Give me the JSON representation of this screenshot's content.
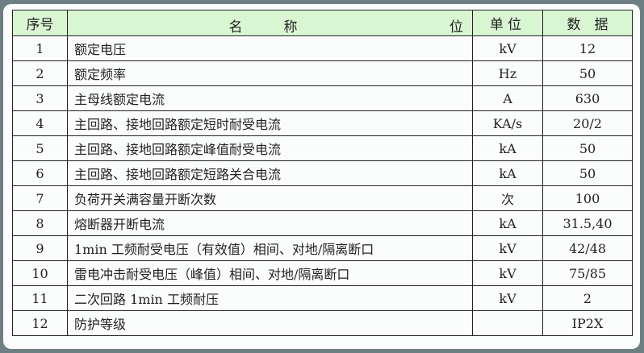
{
  "table": {
    "headers": {
      "index": "序号",
      "name": "名　称",
      "unit_extra": "位",
      "unit": "单位",
      "value": "数　据"
    },
    "rows": [
      {
        "index": "1",
        "name": "额定电压",
        "unit": "kV",
        "value": "12"
      },
      {
        "index": "2",
        "name": "额定频率",
        "unit": "Hz",
        "value": "50"
      },
      {
        "index": "3",
        "name": "主母线额定电流",
        "unit": "A",
        "value": "630"
      },
      {
        "index": "4",
        "name": "主回路、接地回路额定短时耐受电流",
        "unit": "KA/s",
        "value": "20/2"
      },
      {
        "index": "5",
        "name": "主回路、接地回路额定峰值耐受电流",
        "unit": "kA",
        "value": "50"
      },
      {
        "index": "6",
        "name": "主回路、接地回路额定短路关合电流",
        "unit": "kA",
        "value": "50"
      },
      {
        "index": "7",
        "name": "负荷开关满容量开断次数",
        "unit": "次",
        "value": "100"
      },
      {
        "index": "8",
        "name": "熔断器开断电流",
        "unit": "kA",
        "value": "31.5,40"
      },
      {
        "index": "9",
        "name": "1min 工频耐受电压（有效值）相间、对地/隔离断口",
        "unit": "kV",
        "value": "42/48"
      },
      {
        "index": "10",
        "name": "雷电冲击耐受电压（峰值）相间、对地/隔离断口",
        "unit": "kV",
        "value": "75/85"
      },
      {
        "index": "11",
        "name": "二次回路 1min 工频耐压",
        "unit": "kV",
        "value": "2"
      },
      {
        "index": "12",
        "name": "防护等级",
        "unit": "",
        "value": "IP2X"
      }
    ]
  },
  "colors": {
    "header_bg": "#d9f6d3",
    "background": "#6e7f84"
  }
}
